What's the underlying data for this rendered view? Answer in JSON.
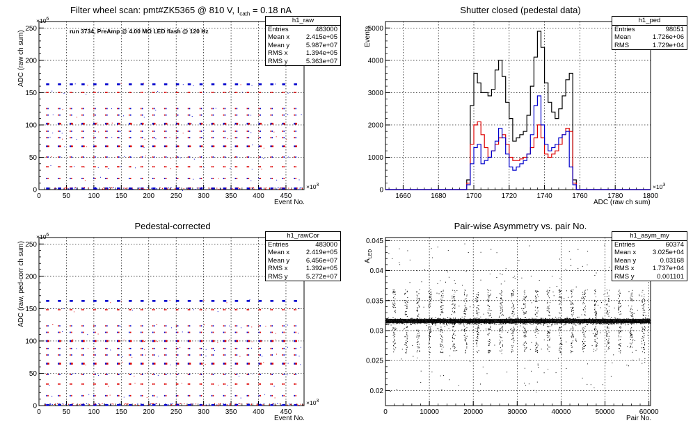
{
  "chart_data": [
    {
      "type": "scatter",
      "title_main": "Filter wheel scan: pmt#ZK5365 @   810 V, I",
      "title_sub": "cath",
      "title_tail": " = 0.18 nA",
      "annotation": "run 3734, PreAmp @ 4.00 MΩ LED flash @   120 Hz",
      "xlabel": "Event No.",
      "ylabel": "ADC (raw ch sum)",
      "x_exponent": "3",
      "y_exponent": "6",
      "xlim": [
        0,
        483
      ],
      "ylim": [
        0,
        260
      ],
      "x_ticks": [
        "0",
        "50",
        "100",
        "150",
        "200",
        "250",
        "300",
        "350",
        "400",
        "450"
      ],
      "y_ticks": [
        "0",
        "50",
        "100",
        "150",
        "200",
        "250"
      ],
      "grid": true,
      "stats": {
        "name": "h1_raw",
        "rows": [
          [
            "Entries",
            "483000"
          ],
          [
            "Mean x",
            "2.415e+05"
          ],
          [
            "Mean y",
            "5.987e+07"
          ],
          [
            "RMS x",
            "1.394e+05"
          ],
          [
            "RMS y",
            "5.363e+07"
          ]
        ]
      },
      "levels": [
        {
          "y": 163,
          "colors": [
            "blue",
            "blue"
          ]
        },
        {
          "y": 150,
          "colors": [
            "red",
            "red"
          ]
        },
        {
          "y": 125,
          "colors": [
            "red",
            "blue"
          ]
        },
        {
          "y": 115,
          "colors": [
            "red",
            "blue"
          ]
        },
        {
          "y": 102,
          "colors": [
            "blue",
            "red"
          ]
        },
        {
          "y": 90,
          "colors": [
            "red",
            "blue"
          ]
        },
        {
          "y": 80,
          "colors": [
            "red",
            "blue"
          ]
        },
        {
          "y": 67,
          "colors": [
            "blue",
            "red"
          ]
        },
        {
          "y": 50,
          "colors": [
            "red",
            "blue"
          ]
        },
        {
          "y": 35,
          "colors": [
            "red",
            "red"
          ]
        },
        {
          "y": 17,
          "colors": [
            "blue",
            "red"
          ]
        },
        {
          "y": 2,
          "colors": [
            "blue",
            "blue"
          ]
        }
      ],
      "cycle_start": 10,
      "cycle_period": 21.5
    },
    {
      "type": "line",
      "title": "Shutter closed (pedestal data)",
      "xlabel": "ADC (raw ch sum)",
      "ylabel": "Events",
      "x_exponent": "3",
      "xlim": [
        1650,
        1800
      ],
      "ylim": [
        0,
        5200
      ],
      "x_ticks": [
        "1660",
        "1680",
        "1700",
        "1720",
        "1740",
        "1760",
        "1780",
        "1800"
      ],
      "y_ticks": [
        "0",
        "1000",
        "2000",
        "3000",
        "4000",
        "5000"
      ],
      "grid": true,
      "stats": {
        "name": "h1_ped",
        "rows": [
          [
            "Entries",
            "98051"
          ],
          [
            "Mean",
            "1.726e+06"
          ],
          [
            "RMS",
            "1.729e+04"
          ]
        ]
      },
      "series": [
        {
          "color": "black",
          "points": [
            [
              1650,
              0
            ],
            [
              1694,
              0
            ],
            [
              1696,
              300
            ],
            [
              1698,
              2600
            ],
            [
              1700,
              3600
            ],
            [
              1702,
              3300
            ],
            [
              1704,
              3000
            ],
            [
              1706,
              3000
            ],
            [
              1708,
              2900
            ],
            [
              1710,
              3100
            ],
            [
              1712,
              3700
            ],
            [
              1714,
              4000
            ],
            [
              1716,
              3500
            ],
            [
              1718,
              2700
            ],
            [
              1720,
              2200
            ],
            [
              1722,
              1500
            ],
            [
              1724,
              1600
            ],
            [
              1726,
              1700
            ],
            [
              1728,
              1800
            ],
            [
              1730,
              2300
            ],
            [
              1732,
              3200
            ],
            [
              1734,
              4100
            ],
            [
              1736,
              4900
            ],
            [
              1738,
              4400
            ],
            [
              1740,
              3300
            ],
            [
              1742,
              2700
            ],
            [
              1744,
              2400
            ],
            [
              1746,
              2200
            ],
            [
              1748,
              2500
            ],
            [
              1750,
              2900
            ],
            [
              1752,
              3400
            ],
            [
              1754,
              3600
            ],
            [
              1756,
              300
            ],
            [
              1758,
              0
            ],
            [
              1800,
              0
            ]
          ]
        },
        {
          "color": "red",
          "points": [
            [
              1650,
              0
            ],
            [
              1694,
              0
            ],
            [
              1696,
              200
            ],
            [
              1698,
              1400
            ],
            [
              1700,
              2000
            ],
            [
              1702,
              2100
            ],
            [
              1704,
              1700
            ],
            [
              1706,
              1300
            ],
            [
              1708,
              1000
            ],
            [
              1710,
              1200
            ],
            [
              1712,
              1400
            ],
            [
              1714,
              1600
            ],
            [
              1716,
              1700
            ],
            [
              1718,
              1400
            ],
            [
              1720,
              1000
            ],
            [
              1722,
              900
            ],
            [
              1724,
              900
            ],
            [
              1726,
              950
            ],
            [
              1728,
              1000
            ],
            [
              1730,
              1100
            ],
            [
              1732,
              1300
            ],
            [
              1734,
              1600
            ],
            [
              1736,
              2000
            ],
            [
              1738,
              1600
            ],
            [
              1740,
              1100
            ],
            [
              1742,
              1000
            ],
            [
              1744,
              1100
            ],
            [
              1746,
              1200
            ],
            [
              1748,
              1400
            ],
            [
              1750,
              1700
            ],
            [
              1752,
              1900
            ],
            [
              1754,
              1800
            ],
            [
              1756,
              200
            ],
            [
              1758,
              0
            ],
            [
              1800,
              0
            ]
          ]
        },
        {
          "color": "blue",
          "points": [
            [
              1650,
              0
            ],
            [
              1694,
              0
            ],
            [
              1696,
              150
            ],
            [
              1698,
              800
            ],
            [
              1700,
              1300
            ],
            [
              1702,
              1400
            ],
            [
              1704,
              800
            ],
            [
              1706,
              900
            ],
            [
              1708,
              1000
            ],
            [
              1710,
              1200
            ],
            [
              1712,
              1500
            ],
            [
              1714,
              1900
            ],
            [
              1716,
              1600
            ],
            [
              1718,
              1100
            ],
            [
              1720,
              700
            ],
            [
              1722,
              600
            ],
            [
              1724,
              700
            ],
            [
              1726,
              800
            ],
            [
              1728,
              900
            ],
            [
              1730,
              1100
            ],
            [
              1732,
              1700
            ],
            [
              1734,
              2600
            ],
            [
              1736,
              2900
            ],
            [
              1738,
              2000
            ],
            [
              1740,
              1400
            ],
            [
              1742,
              1200
            ],
            [
              1744,
              1300
            ],
            [
              1746,
              1400
            ],
            [
              1748,
              1600
            ],
            [
              1750,
              1700
            ],
            [
              1752,
              1800
            ],
            [
              1754,
              700
            ],
            [
              1756,
              150
            ],
            [
              1758,
              0
            ],
            [
              1800,
              0
            ]
          ]
        }
      ]
    },
    {
      "type": "scatter",
      "title": "Pedestal-corrected",
      "xlabel": "Event No.",
      "ylabel": "ADC (raw, ped-corr ch sum)",
      "x_exponent": "3",
      "y_exponent": "6",
      "xlim": [
        0,
        483
      ],
      "ylim": [
        0,
        260
      ],
      "x_ticks": [
        "0",
        "50",
        "100",
        "150",
        "200",
        "250",
        "300",
        "350",
        "400",
        "450"
      ],
      "y_ticks": [
        "0",
        "50",
        "100",
        "150",
        "200",
        "250"
      ],
      "grid": true,
      "stats": {
        "name": "h1_rawCor",
        "rows": [
          [
            "Entries",
            "483000"
          ],
          [
            "Mean x",
            "2.419e+05"
          ],
          [
            "Mean y",
            "6.456e+07"
          ],
          [
            "RMS x",
            "1.392e+05"
          ],
          [
            "RMS y",
            "5.272e+07"
          ]
        ]
      },
      "levels": [
        {
          "y": 162,
          "colors": [
            "blue",
            "blue"
          ]
        },
        {
          "y": 148,
          "colors": [
            "red",
            "red"
          ]
        },
        {
          "y": 123,
          "colors": [
            "red",
            "blue"
          ]
        },
        {
          "y": 113,
          "colors": [
            "blue",
            "red"
          ]
        },
        {
          "y": 100,
          "colors": [
            "blue",
            "red"
          ]
        },
        {
          "y": 88,
          "colors": [
            "red",
            "blue"
          ]
        },
        {
          "y": 78,
          "colors": [
            "red",
            "blue"
          ]
        },
        {
          "y": 65,
          "colors": [
            "blue",
            "red"
          ]
        },
        {
          "y": 48,
          "colors": [
            "red",
            "blue"
          ]
        },
        {
          "y": 33,
          "colors": [
            "red",
            "red"
          ]
        },
        {
          "y": 15,
          "colors": [
            "blue",
            "red"
          ]
        },
        {
          "y": 1,
          "colors": [
            "blue",
            "blue"
          ]
        }
      ],
      "cycle_start": 10,
      "cycle_period": 21.5
    },
    {
      "type": "scatter",
      "title": "Pair-wise Asymmetry vs. pair No.",
      "xlabel": "Pair No.",
      "ylabel_main": "A",
      "ylabel_sub": "LED",
      "xlim": [
        0,
        60374
      ],
      "ylim": [
        0.0175,
        0.0455
      ],
      "x_ticks": [
        "0",
        "10000",
        "20000",
        "30000",
        "40000",
        "50000",
        "60000"
      ],
      "y_ticks": [
        "0.02",
        "0.025",
        "0.03",
        "0.035",
        "0.04",
        "0.045"
      ],
      "grid": true,
      "stats": {
        "name": "h1_asym_my",
        "rows": [
          [
            "Entries",
            "60374"
          ],
          [
            "Mean x",
            "3.025e+04"
          ],
          [
            "Mean y",
            "0.03168"
          ],
          [
            "RMS x",
            "1.737e+04"
          ],
          [
            "RMS y",
            "0.001101"
          ]
        ]
      },
      "band_center": 0.0316,
      "band_halfwidth": 0.0006,
      "spike_positions": [
        1900,
        4650,
        7350,
        10050,
        12750,
        15450,
        18150,
        20850,
        23550,
        26250,
        28950,
        31650,
        34350,
        37050,
        39750,
        42450,
        45150,
        47850,
        50550,
        53250,
        55950,
        58650
      ]
    }
  ]
}
